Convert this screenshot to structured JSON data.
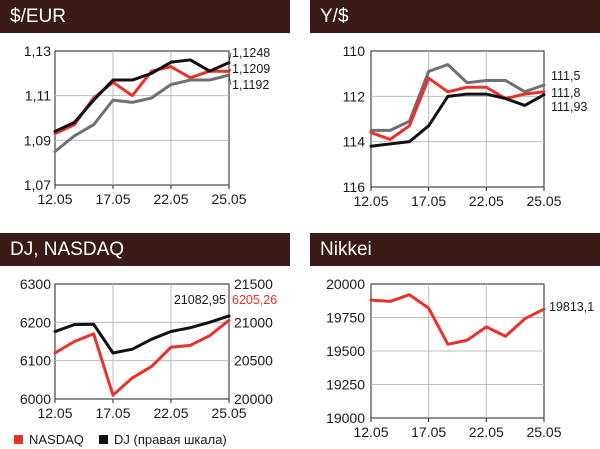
{
  "colors": {
    "header_bg": "#3a1a14",
    "red": "#e8322c",
    "black": "#111111",
    "gray": "#707070"
  },
  "panels": {
    "usd_eur": {
      "title": "$/EUR"
    },
    "yen_usd": {
      "title": "Y/$"
    },
    "dj_nasdaq": {
      "title": "DJ, NASDAQ"
    },
    "nikkei": {
      "title": "Nikkei"
    }
  },
  "legend": {
    "nasdaq": "NASDAQ",
    "dj": "DJ (правая шкала)"
  },
  "chart_data": [
    {
      "id": "usd_eur",
      "type": "line",
      "xticks": [
        "12.05",
        "17.05",
        "22.05",
        "25.05"
      ],
      "y_ticks": [
        "1,13",
        "1,11",
        "1,09",
        "1,07"
      ],
      "y_tick_values": [
        1.13,
        1.11,
        1.09,
        1.07
      ],
      "ylim": [
        1.07,
        1.13
      ],
      "series": [
        {
          "color": "red",
          "values": [
            1.093,
            1.097,
            1.109,
            1.116,
            1.11,
            1.121,
            1.123,
            1.118,
            1.121,
            1.1209
          ],
          "end_label": "1,1209"
        },
        {
          "color": "black",
          "values": [
            1.094,
            1.098,
            1.108,
            1.117,
            1.117,
            1.12,
            1.125,
            1.126,
            1.121,
            1.1248
          ],
          "end_label": "1,1248"
        },
        {
          "color": "gray",
          "values": [
            1.085,
            1.092,
            1.097,
            1.108,
            1.107,
            1.109,
            1.115,
            1.117,
            1.117,
            1.1192
          ],
          "end_label": "1,1192"
        }
      ]
    },
    {
      "id": "yen_usd",
      "type": "line",
      "xticks": [
        "12.05",
        "17.05",
        "22.05",
        "25.05"
      ],
      "y_ticks": [
        "110",
        "112",
        "114",
        "116"
      ],
      "y_tick_values": [
        110,
        112,
        114,
        116
      ],
      "ylim": [
        110,
        116
      ],
      "inverted": true,
      "series": [
        {
          "color": "gray",
          "values": [
            113.5,
            113.5,
            113.1,
            110.9,
            110.6,
            111.4,
            111.3,
            111.3,
            111.8,
            111.5
          ],
          "end_label": "111,5"
        },
        {
          "color": "red",
          "values": [
            113.6,
            113.9,
            113.3,
            111.2,
            111.8,
            111.6,
            111.6,
            112.1,
            111.9,
            111.8
          ],
          "end_label": "111,8"
        },
        {
          "color": "black",
          "values": [
            114.2,
            114.1,
            114.0,
            113.3,
            112.0,
            111.9,
            111.9,
            112.1,
            112.4,
            111.93
          ],
          "end_label": "111,93"
        }
      ]
    },
    {
      "id": "dj_nasdaq",
      "type": "line",
      "xticks": [
        "12.05",
        "17.05",
        "22.05",
        "25.05"
      ],
      "left_ticks": [
        "6300",
        "6200",
        "6100",
        "6000"
      ],
      "left_tick_values": [
        6300,
        6200,
        6100,
        6000
      ],
      "right_ticks": [
        "21500",
        "21000",
        "20500",
        "20000"
      ],
      "right_tick_values": [
        21500,
        21000,
        20500,
        20000
      ],
      "ylim_left": [
        6000,
        6300
      ],
      "ylim_right": [
        20000,
        21500
      ],
      "series": [
        {
          "name": "NASDAQ",
          "color": "red",
          "axis": "left",
          "values": [
            6120,
            6150,
            6170,
            6010,
            6055,
            6085,
            6135,
            6140,
            6165,
            6205.26
          ],
          "end_label": "6205,26"
        },
        {
          "name": "DJ",
          "color": "black",
          "axis": "right",
          "values": [
            20880,
            20970,
            20975,
            20600,
            20650,
            20780,
            20880,
            20930,
            21000,
            21082.95
          ],
          "end_label": "21082,95"
        }
      ]
    },
    {
      "id": "nikkei",
      "type": "line",
      "xticks": [
        "12.05",
        "17.05",
        "22.05",
        "25.05"
      ],
      "y_ticks": [
        "20000",
        "19750",
        "19500",
        "19250",
        "19000"
      ],
      "y_tick_values": [
        20000,
        19750,
        19500,
        19250,
        19000
      ],
      "ylim": [
        19000,
        20000
      ],
      "series": [
        {
          "color": "red",
          "values": [
            19880,
            19870,
            19920,
            19820,
            19550,
            19580,
            19680,
            19610,
            19740,
            19813.1
          ],
          "end_label": "19813,1"
        }
      ]
    }
  ]
}
